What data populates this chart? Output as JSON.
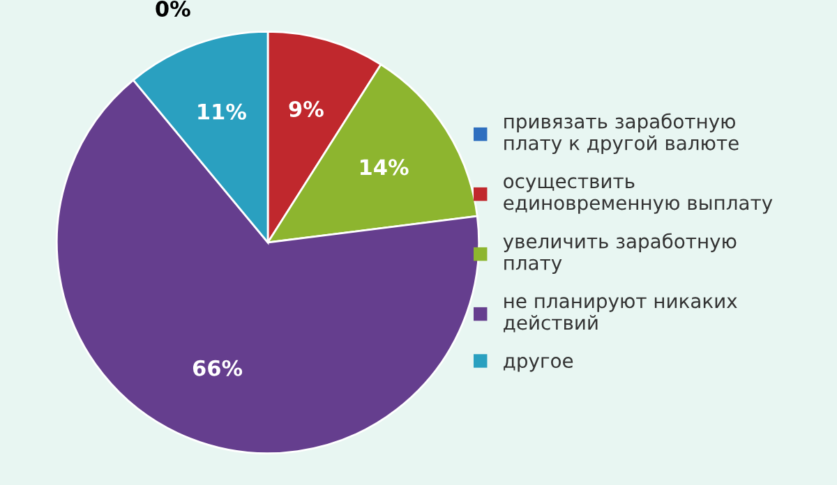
{
  "chart_data": {
    "type": "pie",
    "categories": [
      "привязать заработную плату к другой валюте",
      "осуществить единовременную выплату",
      "увеличить заработную плату",
      "не планируют никаких действий",
      "другое"
    ],
    "values": [
      0,
      9,
      14,
      66,
      11
    ],
    "colors": [
      "#2f6fbf",
      "#c0282d",
      "#8db52f",
      "#653e8e",
      "#2aa0c0"
    ],
    "value_labels": [
      "0%",
      "9%",
      "14%",
      "66%",
      "11%"
    ],
    "legend": "right"
  }
}
